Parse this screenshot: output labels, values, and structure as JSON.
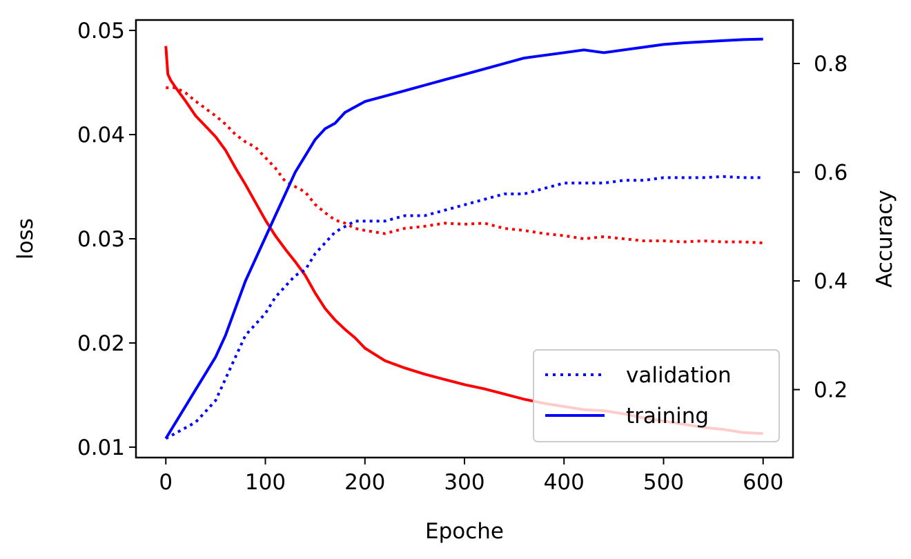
{
  "chart_data": {
    "type": "line",
    "xlabel": "Epoche",
    "ylabel_left": "loss",
    "ylabel_right": "Accuracy",
    "xlim": [
      -30,
      630
    ],
    "ylim_left": [
      0.009,
      0.051
    ],
    "ylim_right": [
      0.075,
      0.88
    ],
    "x_ticks": [
      0,
      100,
      200,
      300,
      400,
      500,
      600
    ],
    "y_left_ticks": [
      0.01,
      0.02,
      0.03,
      0.04,
      0.05
    ],
    "y_right_ticks": [
      0.2,
      0.4,
      0.6,
      0.8
    ],
    "grid": false,
    "legend_position": "lower-right",
    "legend": [
      {
        "label": "validation",
        "style": "dotted",
        "color": "#0000ff"
      },
      {
        "label": "training",
        "style": "solid",
        "color": "#0000ff"
      }
    ],
    "series": [
      {
        "axis": "left",
        "color": "#ff0000",
        "style": "solid",
        "x": [
          0,
          2,
          5,
          10,
          20,
          30,
          40,
          50,
          60,
          70,
          80,
          90,
          100,
          110,
          120,
          130,
          140,
          150,
          160,
          170,
          180,
          190,
          200,
          220,
          240,
          260,
          280,
          300,
          320,
          340,
          360,
          380,
          400,
          420,
          440,
          460,
          480,
          500,
          520,
          540,
          560,
          580,
          600
        ],
        "y": [
          0.0485,
          0.0458,
          0.0452,
          0.0445,
          0.0432,
          0.0418,
          0.0408,
          0.0398,
          0.0385,
          0.0368,
          0.0352,
          0.0335,
          0.0318,
          0.0303,
          0.029,
          0.0278,
          0.0265,
          0.0248,
          0.0233,
          0.0222,
          0.0213,
          0.0205,
          0.0195,
          0.0183,
          0.0176,
          0.017,
          0.0165,
          0.016,
          0.0156,
          0.0151,
          0.0146,
          0.0142,
          0.0139,
          0.0136,
          0.0135,
          0.0132,
          0.0128,
          0.0125,
          0.0122,
          0.0119,
          0.0117,
          0.0114,
          0.0113
        ]
      },
      {
        "axis": "left",
        "color": "#ff0000",
        "style": "dotted",
        "x": [
          0,
          10,
          20,
          30,
          40,
          50,
          60,
          70,
          80,
          90,
          100,
          110,
          120,
          130,
          140,
          150,
          160,
          170,
          180,
          190,
          200,
          220,
          240,
          260,
          280,
          300,
          320,
          340,
          360,
          380,
          400,
          420,
          440,
          460,
          480,
          500,
          520,
          540,
          560,
          580,
          600
        ],
        "y": [
          0.0445,
          0.0445,
          0.044,
          0.0432,
          0.0425,
          0.0418,
          0.041,
          0.04,
          0.0393,
          0.0388,
          0.0378,
          0.0368,
          0.0355,
          0.035,
          0.0345,
          0.0333,
          0.0325,
          0.0318,
          0.0315,
          0.031,
          0.0308,
          0.0305,
          0.031,
          0.0312,
          0.0315,
          0.0314,
          0.0315,
          0.031,
          0.0308,
          0.0305,
          0.0303,
          0.03,
          0.0302,
          0.03,
          0.0298,
          0.0298,
          0.0297,
          0.0298,
          0.0297,
          0.0297,
          0.0296
        ]
      },
      {
        "axis": "right",
        "color": "#0000ff",
        "style": "solid",
        "x": [
          0,
          10,
          20,
          30,
          40,
          50,
          60,
          70,
          80,
          90,
          100,
          110,
          120,
          130,
          140,
          150,
          160,
          170,
          180,
          190,
          200,
          220,
          240,
          260,
          280,
          300,
          320,
          340,
          360,
          380,
          400,
          420,
          440,
          460,
          480,
          500,
          520,
          540,
          560,
          580,
          600
        ],
        "y": [
          0.11,
          0.14,
          0.17,
          0.2,
          0.23,
          0.26,
          0.3,
          0.35,
          0.4,
          0.44,
          0.48,
          0.52,
          0.56,
          0.6,
          0.63,
          0.66,
          0.68,
          0.69,
          0.71,
          0.72,
          0.73,
          0.74,
          0.75,
          0.76,
          0.77,
          0.78,
          0.79,
          0.8,
          0.81,
          0.815,
          0.82,
          0.825,
          0.82,
          0.825,
          0.83,
          0.835,
          0.838,
          0.84,
          0.842,
          0.844,
          0.845
        ]
      },
      {
        "axis": "right",
        "color": "#0000ff",
        "style": "dotted",
        "x": [
          0,
          10,
          20,
          30,
          40,
          50,
          60,
          70,
          80,
          90,
          100,
          110,
          120,
          130,
          140,
          150,
          160,
          170,
          180,
          190,
          200,
          220,
          240,
          260,
          280,
          300,
          320,
          340,
          360,
          380,
          400,
          420,
          440,
          460,
          480,
          500,
          520,
          540,
          560,
          580,
          600
        ],
        "y": [
          0.11,
          0.12,
          0.13,
          0.14,
          0.16,
          0.18,
          0.22,
          0.26,
          0.3,
          0.32,
          0.34,
          0.37,
          0.39,
          0.41,
          0.42,
          0.45,
          0.47,
          0.49,
          0.5,
          0.51,
          0.51,
          0.51,
          0.52,
          0.52,
          0.53,
          0.54,
          0.55,
          0.56,
          0.56,
          0.57,
          0.58,
          0.58,
          0.58,
          0.585,
          0.585,
          0.59,
          0.59,
          0.59,
          0.592,
          0.59,
          0.59
        ]
      }
    ]
  }
}
